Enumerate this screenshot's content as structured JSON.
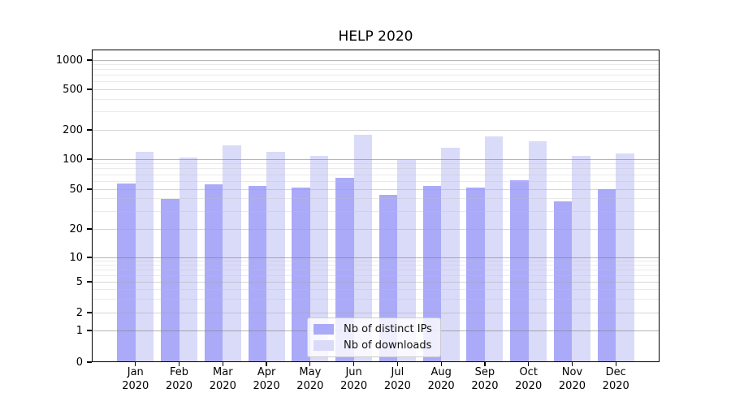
{
  "chart_data": {
    "type": "bar",
    "title": "HELP 2020",
    "categories": [
      "Jan 2020",
      "Feb 2020",
      "Mar 2020",
      "Apr 2020",
      "May 2020",
      "Jun 2020",
      "Jul 2020",
      "Aug 2020",
      "Sep 2020",
      "Oct 2020",
      "Nov 2020",
      "Dec 2020"
    ],
    "series": [
      {
        "name": "Nb of distinct IPs",
        "color": "#aaaaf8",
        "values": [
          57,
          40,
          56,
          54,
          52,
          65,
          44,
          54,
          52,
          62,
          38,
          50
        ]
      },
      {
        "name": "Nb of downloads",
        "color": "#dadaf9",
        "values": [
          120,
          104,
          139,
          118,
          108,
          178,
          99,
          130,
          170,
          152,
          109,
          114
        ]
      }
    ],
    "xlabel": "",
    "ylabel": "",
    "yscale": "symlog",
    "ylim": [
      0,
      1280
    ],
    "y_ticks": [
      0,
      1,
      2,
      5,
      10,
      20,
      50,
      100,
      200,
      500,
      1000
    ],
    "grid": "both-horizontal",
    "legend_position": "lower center"
  }
}
